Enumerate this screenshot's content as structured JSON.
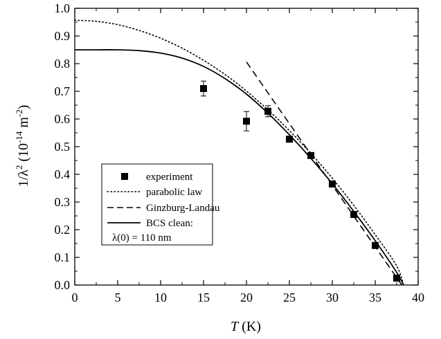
{
  "chart_data": {
    "type": "scatter",
    "xlabel_var": "T",
    "xlabel_unit": " (K)",
    "ylabel_text": "1/λ",
    "ylabel_exp": "2",
    "ylabel_unit_pre": " (10",
    "ylabel_unit_exp": "-14",
    "ylabel_unit_mid": " m",
    "ylabel_unit_exp2": "-2",
    "ylabel_unit_post": ")",
    "xlim": [
      0,
      40
    ],
    "ylim": [
      0.0,
      1.0
    ],
    "xticks": [
      0,
      5,
      10,
      15,
      20,
      25,
      30,
      35,
      40
    ],
    "yticks": [
      0.0,
      0.1,
      0.2,
      0.3,
      0.4,
      0.5,
      0.6,
      0.7,
      0.8,
      0.9,
      1.0
    ],
    "xtick_labels": [
      "0",
      "5",
      "10",
      "15",
      "20",
      "25",
      "30",
      "35",
      "40"
    ],
    "ytick_labels": [
      "0.0",
      "0.1",
      "0.2",
      "0.3",
      "0.4",
      "0.5",
      "0.6",
      "0.7",
      "0.8",
      "0.9",
      "1.0"
    ],
    "grid": false,
    "legend_position": "bottom-left",
    "series": [
      {
        "name": "experiment",
        "kind": "points",
        "marker": "square",
        "color": "#000000",
        "points": [
          {
            "x": 15.0,
            "y": 0.71,
            "err": 0.027
          },
          {
            "x": 20.0,
            "y": 0.592,
            "err": 0.035
          },
          {
            "x": 22.5,
            "y": 0.628,
            "err": 0.02
          },
          {
            "x": 25.0,
            "y": 0.527,
            "err": 0.008
          },
          {
            "x": 27.5,
            "y": 0.468,
            "err": 0.007
          },
          {
            "x": 30.0,
            "y": 0.365,
            "err": 0.007
          },
          {
            "x": 32.5,
            "y": 0.255,
            "err": 0.006
          },
          {
            "x": 35.0,
            "y": 0.143,
            "err": 0.006
          },
          {
            "x": 37.5,
            "y": 0.025,
            "err": 0.006
          }
        ]
      },
      {
        "name": "parabolic law",
        "kind": "curve",
        "dash": "dotted",
        "color": "#000000",
        "x": [
          0,
          2.5,
          5,
          7.5,
          10,
          12.5,
          15,
          17.5,
          20,
          22.5,
          25,
          27.5,
          30,
          32.5,
          35,
          37.5,
          38.3
        ],
        "y": [
          0.957,
          0.953,
          0.941,
          0.92,
          0.892,
          0.856,
          0.812,
          0.761,
          0.701,
          0.633,
          0.558,
          0.476,
          0.386,
          0.288,
          0.182,
          0.069,
          0.0
        ]
      },
      {
        "name": "Ginzburg-Landau",
        "kind": "curve",
        "dash": "dashed",
        "color": "#000000",
        "x": [
          20,
          38.1
        ],
        "y": [
          0.806,
          0.0
        ]
      },
      {
        "name": "BCS clean:",
        "name_line2": "λ(0) = 110 nm",
        "kind": "curve",
        "dash": "solid",
        "color": "#000000",
        "x": [
          0,
          2.5,
          5,
          7.5,
          10,
          12.5,
          15,
          17.5,
          20,
          22.5,
          25,
          27.5,
          30,
          32.5,
          35,
          37.5,
          38.3
        ],
        "y": [
          0.85,
          0.85,
          0.85,
          0.847,
          0.838,
          0.82,
          0.79,
          0.746,
          0.69,
          0.621,
          0.543,
          0.458,
          0.366,
          0.266,
          0.16,
          0.046,
          0.0
        ]
      }
    ]
  }
}
